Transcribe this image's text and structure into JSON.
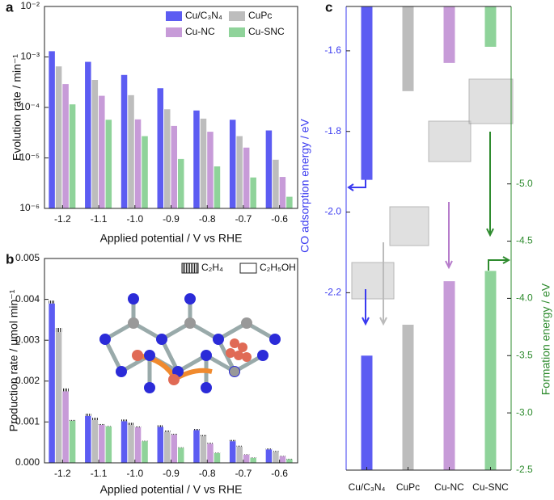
{
  "chart_data": [
    {
      "type": "bar",
      "panel": "a",
      "log": true,
      "ylabel": "Evolution rate / min⁻¹",
      "xlabel": "Applied potential / V vs RHE",
      "categories": [
        "-1.2",
        "-1.1",
        "-1.0",
        "-0.9",
        "-0.8",
        "-0.7",
        "-0.6"
      ],
      "series": [
        {
          "name": "Cu/C₃N₄",
          "color": "#5c5cf2",
          "values": [
            0.0013,
            0.0008,
            0.00044,
            0.00024,
            8.7e-05,
            5.7e-05,
            3.5e-05
          ]
        },
        {
          "name": "CuPc",
          "color": "#bdbdbd",
          "values": [
            0.00065,
            0.00035,
            0.000175,
            9.2e-05,
            6e-05,
            2.7e-05,
            9.2e-06
          ]
        },
        {
          "name": "Cu-NC",
          "color": "#c79bd8",
          "values": [
            0.00029,
            0.00017,
            5.8e-05,
            4.3e-05,
            3.3e-05,
            1.6e-05,
            4.2e-06
          ]
        },
        {
          "name": "Cu-SNC",
          "color": "#8fd39a",
          "values": [
            0.000115,
            5.7e-05,
            2.7e-05,
            9.5e-06,
            6.8e-06,
            4.1e-06,
            1.7e-06
          ]
        }
      ],
      "ylim": [
        1e-06,
        0.01
      ],
      "yticks": [
        {
          "value": 1e-06,
          "label": "10⁻⁶"
        },
        {
          "value": 1e-05,
          "label": "10⁻⁵"
        },
        {
          "value": 0.0001,
          "label": "10⁻⁴"
        },
        {
          "value": 0.001,
          "label": "10⁻³"
        },
        {
          "value": 0.01,
          "label": "10⁻²"
        }
      ]
    },
    {
      "type": "stacked_bar",
      "panel": "b",
      "ylabel": "Production rate / μmol min⁻¹",
      "xlabel": "Applied potential / V vs RHE",
      "categories": [
        "-1.2",
        "-1.1",
        "-1.0",
        "-0.9",
        "-0.8",
        "-0.7",
        "-0.6"
      ],
      "colors": [
        "#5c5cf2",
        "#bdbdbd",
        "#c79bd8",
        "#8fd39a"
      ],
      "series": [
        {
          "name": "C₂H₅OH",
          "pattern": "solid",
          "values": [
            [
              0.0039,
              0.00115,
              0.00102,
              0.00088,
              0.0008,
              0.00053,
              0.00033
            ],
            [
              0.0032,
              0.00105,
              0.00093,
              0.00076,
              0.00065,
              0.0004,
              0.00027
            ],
            [
              0.00175,
              0.00093,
              0.00087,
              0.00069,
              0.00047,
              0.0002,
              0.00016
            ],
            [
              0.00103,
              0.00089,
              0.00053,
              0.00037,
              0.00024,
              0.00012,
              9e-05
            ]
          ]
        },
        {
          "name": "C₂H₄",
          "pattern": "hatch",
          "values": [
            [
              7e-05,
              5e-05,
              4e-05,
              4e-05,
              3e-05,
              3e-05,
              2e-05
            ],
            [
              0.0001,
              5e-05,
              5e-05,
              3e-05,
              3e-05,
              2e-05,
              2e-05
            ],
            [
              7e-05,
              2e-05,
              2e-05,
              2e-05,
              2e-05,
              1e-05,
              1e-05
            ],
            [
              2e-05,
              1e-05,
              1e-05,
              1e-05,
              1e-05,
              1e-05,
              1e-05
            ]
          ]
        }
      ],
      "ylim": [
        0,
        0.005
      ],
      "yticks": [
        {
          "value": 0,
          "label": "0.000"
        },
        {
          "value": 0.001,
          "label": "0.001"
        },
        {
          "value": 0.002,
          "label": "0.002"
        },
        {
          "value": 0.003,
          "label": "0.003"
        },
        {
          "value": 0.004,
          "label": "0.004"
        },
        {
          "value": 0.005,
          "label": "0.005"
        }
      ]
    },
    {
      "type": "dual_bar",
      "panel": "c",
      "ylabel": "CO adsorption energy / eV",
      "y2label": "Formation energy / eV",
      "categories": [
        "Cu/C₃N₄",
        "CuPc",
        "Cu-NC",
        "Cu-SNC"
      ],
      "colors": [
        "#5c5cf2",
        "#bdbdbd",
        "#c79bd8",
        "#8fd39a"
      ],
      "series": [
        {
          "axis": "y",
          "values": [
            -1.92,
            -1.7,
            -1.63,
            -1.59
          ]
        },
        {
          "axis": "y2",
          "values": [
            -3.5,
            -3.77,
            -4.15,
            -4.24
          ]
        }
      ],
      "ylim": [
        -2.64,
        -1.49
      ],
      "yticks": [
        -1.6,
        -1.8,
        {
          "value": -2,
          "label": "-2.0"
        },
        -2.2
      ],
      "y2lim": [
        -2.5,
        -6.55
      ],
      "y2ticks": [
        {
          "value": -2.5,
          "label": "-2.5"
        },
        {
          "value": -3,
          "label": "-3.0"
        },
        -3.5,
        {
          "value": -4,
          "label": "-4.0"
        },
        -4.5,
        {
          "value": -5,
          "label": "-5.0"
        }
      ]
    }
  ]
}
